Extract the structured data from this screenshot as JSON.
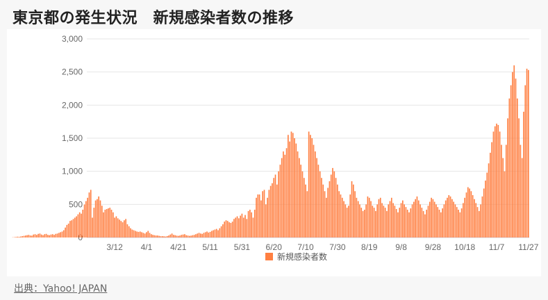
{
  "header": {
    "title": "東京都の発生状況　新規感染者数の推移"
  },
  "footer": {
    "source": "出典：Yahoo! JAPAN"
  },
  "colors": {
    "bar": "#ff7f41",
    "grid": "#e6e6e6",
    "axis_text": "#666666"
  },
  "chart_data": {
    "type": "bar",
    "title": "東京都の発生状況　新規感染者数の推移",
    "legend": {
      "entries": [
        "新規感染者数"
      ],
      "placement": "bottom-center"
    },
    "ylim": [
      0,
      3000
    ],
    "yticks": [
      0,
      500,
      1000,
      1500,
      2000,
      2500,
      3000
    ],
    "ytick_labels": [
      "0",
      "500",
      "1,000",
      "1,500",
      "2,000",
      "2,500",
      "3,000"
    ],
    "xtick_labels": [
      "3/12",
      "4/1",
      "4/21",
      "5/11",
      "5/31",
      "6/20",
      "7/10",
      "7/30",
      "8/19",
      "9/8",
      "9/28",
      "10/18",
      "11/7",
      "11/27"
    ],
    "x_start": "2020-02-24",
    "x_end": "2020-11-27",
    "series": [
      {
        "name": "新規感染者数",
        "values": [
          3,
          5,
          8,
          12,
          10,
          15,
          20,
          25,
          30,
          35,
          40,
          30,
          28,
          45,
          50,
          40,
          55,
          60,
          45,
          35,
          50,
          55,
          40,
          35,
          45,
          50,
          40,
          55,
          60,
          70,
          80,
          90,
          110,
          150,
          190,
          210,
          250,
          260,
          280,
          300,
          320,
          350,
          380,
          360,
          420,
          500,
          550,
          600,
          680,
          720,
          300,
          450,
          560,
          580,
          620,
          560,
          480,
          380,
          420,
          430,
          440,
          450,
          420,
          380,
          300,
          320,
          290,
          270,
          250,
          230,
          260,
          280,
          200,
          170,
          140,
          120,
          110,
          100,
          90,
          85,
          90,
          80,
          70,
          60,
          80,
          100,
          70,
          50,
          40,
          35,
          30,
          30,
          25,
          20,
          20,
          18,
          15,
          22,
          30,
          45,
          60,
          40,
          35,
          28,
          25,
          30,
          40,
          45,
          50,
          35,
          30,
          25,
          28,
          35,
          40,
          50,
          60,
          70,
          60,
          55,
          70,
          80,
          90,
          75,
          85,
          100,
          110,
          120,
          130,
          110,
          140,
          170,
          200,
          240,
          260,
          250,
          230,
          220,
          240,
          280,
          300,
          320,
          290,
          330,
          360,
          300,
          340,
          280,
          400,
          420,
          380,
          300,
          420,
          600,
          650,
          650,
          560,
          700,
          720,
          500,
          600,
          720,
          780,
          820,
          900,
          950,
          800,
          1000,
          1100,
          1200,
          1300,
          1250,
          1350,
          1550,
          1450,
          1600,
          1580,
          1500,
          1420,
          1300,
          1200,
          1100,
          1000,
          900,
          800,
          700,
          1600,
          1550,
          1500,
          1400,
          1300,
          1200,
          1100,
          1000,
          900,
          800,
          700,
          600,
          750,
          850,
          950,
          1050,
          1000,
          900,
          800,
          700,
          650,
          600,
          550,
          500,
          450,
          480,
          650,
          850,
          800,
          700,
          600,
          550,
          500,
          450,
          400,
          420,
          500,
          620,
          600,
          550,
          480,
          450,
          400,
          500,
          580,
          600,
          520,
          480,
          450,
          400,
          500,
          550,
          600,
          520,
          480,
          430,
          380,
          450,
          520,
          560,
          500,
          460,
          420,
          380,
          440,
          500,
          540,
          580,
          620,
          560,
          500,
          450,
          400,
          350,
          420,
          480,
          540,
          600,
          580,
          540,
          500,
          460,
          420,
          380,
          440,
          500,
          560,
          600,
          640,
          620,
          580,
          540,
          500,
          460,
          420,
          380,
          440,
          520,
          600,
          680,
          760,
          740,
          700,
          640,
          580,
          520,
          460,
          400,
          500,
          620,
          740,
          860,
          980,
          1120,
          1280,
          1440,
          1600,
          1680,
          1720,
          1700,
          1600,
          1400,
          1200,
          1000,
          1400,
          1800,
          2100,
          2300,
          2500,
          2600,
          2400,
          2100,
          1800,
          1400,
          1200,
          1900,
          2300,
          2550,
          2530
        ]
      }
    ]
  }
}
